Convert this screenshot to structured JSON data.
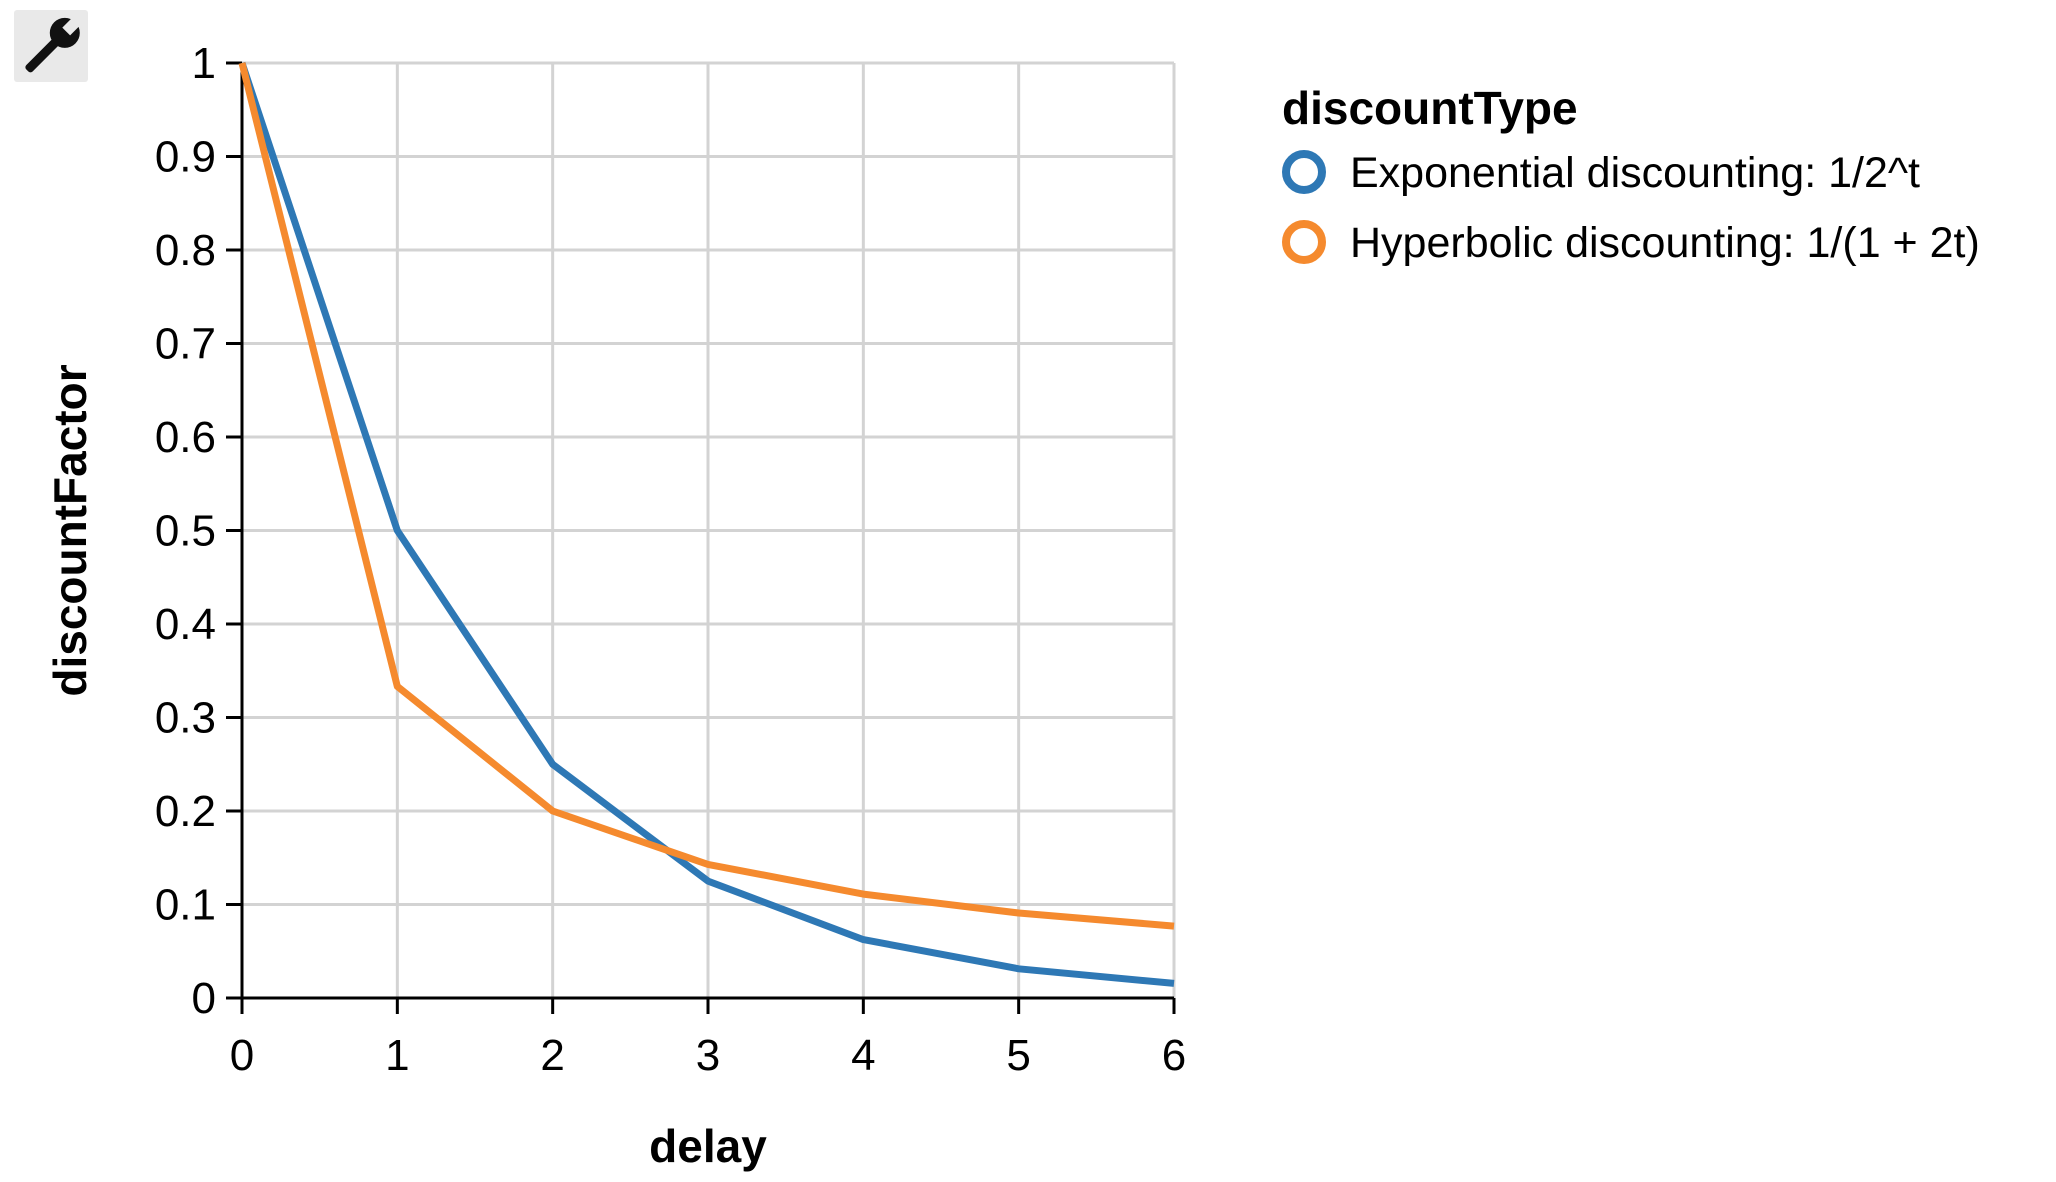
{
  "toolbar": {
    "tool_icon": "wrench-icon"
  },
  "chart_data": {
    "type": "line",
    "xlabel": "delay",
    "ylabel": "discountFactor",
    "x": [
      0,
      1,
      2,
      3,
      4,
      5,
      6
    ],
    "xlim": [
      0,
      6
    ],
    "ylim": [
      0,
      1
    ],
    "x_ticks": [
      "0",
      "1",
      "2",
      "3",
      "4",
      "5",
      "6"
    ],
    "y_ticks": [
      "0",
      "0.1",
      "0.2",
      "0.3",
      "0.4",
      "0.5",
      "0.6",
      "0.7",
      "0.8",
      "0.9",
      "1"
    ],
    "grid": true,
    "legend": {
      "title": "discountType",
      "placement": "right"
    },
    "series": [
      {
        "name": "Exponential discounting: 1/2^t",
        "color": "#2e78b5",
        "values": [
          1,
          0.5,
          0.25,
          0.125,
          0.0625,
          0.03125,
          0.015625
        ]
      },
      {
        "name": "Hyperbolic discounting: 1/(1 + 2t)",
        "color": "#f58a2e",
        "values": [
          1,
          0.3333,
          0.2,
          0.1429,
          0.1111,
          0.0909,
          0.0769
        ]
      }
    ]
  }
}
